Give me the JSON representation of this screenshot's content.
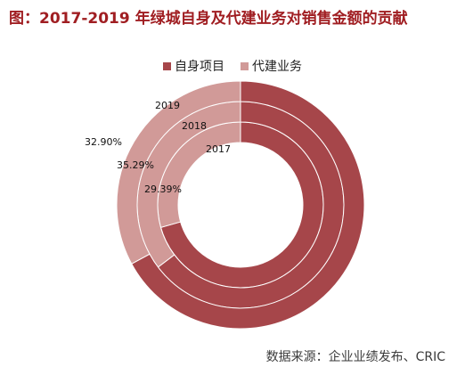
{
  "title": "图：2017-2019 年绿城自身及代建业务对销售金额的贡献",
  "source": "数据来源：企业业绩发布、CRIC",
  "colors": {
    "self": "#a6464a",
    "agent": "#d19a98"
  },
  "chart_data": {
    "type": "donut",
    "legend": [
      "自身项目",
      "代建业务"
    ],
    "rings": [
      {
        "year": "2017",
        "agent_pct": 29.39,
        "label": "29.39%"
      },
      {
        "year": "2018",
        "agent_pct": 35.29,
        "label": "35.29%"
      },
      {
        "year": "2019",
        "agent_pct": 32.9,
        "label": "32.90%"
      }
    ]
  }
}
